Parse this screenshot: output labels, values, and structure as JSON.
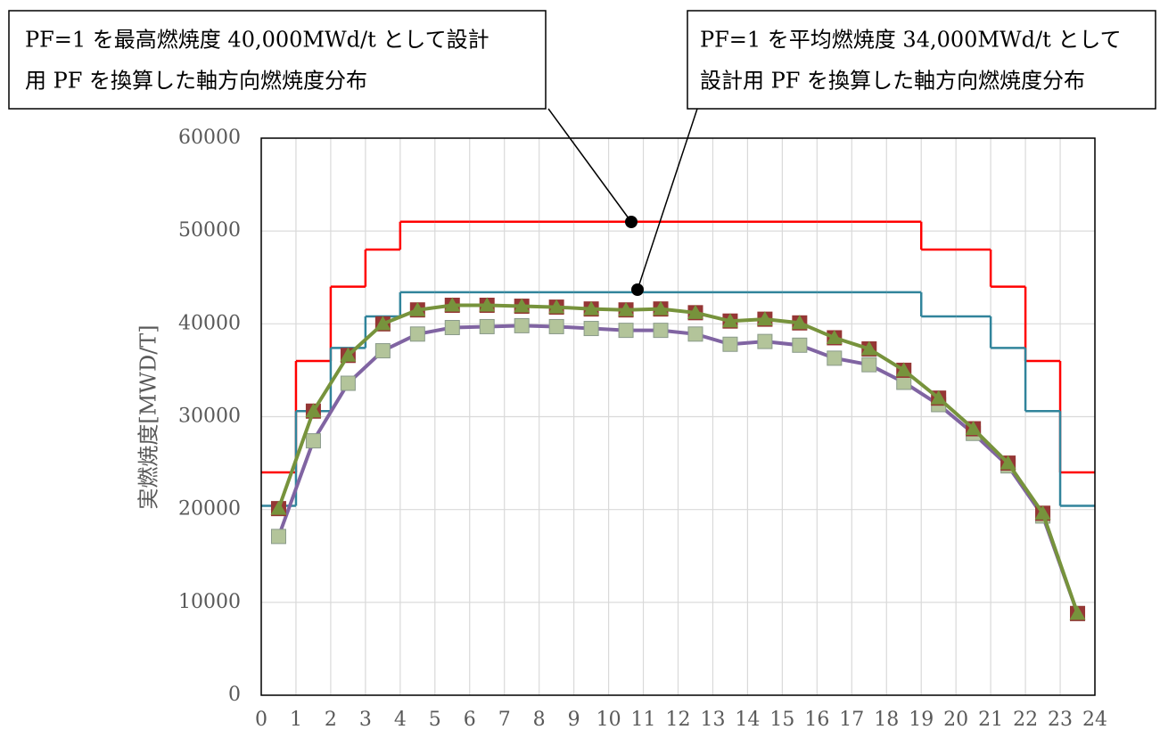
{
  "chart_data": {
    "type": "line",
    "ylabel": "実燃焼度[MWD/T]",
    "x": [
      0.5,
      1.5,
      2.5,
      3.5,
      4.5,
      5.5,
      6.5,
      7.5,
      8.5,
      9.5,
      10.5,
      11.5,
      12.5,
      13.5,
      14.5,
      15.5,
      16.5,
      17.5,
      18.5,
      19.5,
      20.5,
      21.5,
      22.5,
      23.5
    ],
    "xlim": [
      0,
      24
    ],
    "xticks": [
      0,
      1,
      2,
      3,
      4,
      5,
      6,
      7,
      8,
      9,
      10,
      11,
      12,
      13,
      14,
      15,
      16,
      17,
      18,
      19,
      20,
      21,
      22,
      23,
      24
    ],
    "ylim": [
      0,
      60000
    ],
    "yticks": [
      0,
      10000,
      20000,
      30000,
      40000,
      50000,
      60000
    ],
    "grid": true,
    "series": [
      {
        "color": "#ff0000",
        "drawstyle": "steps-mid",
        "marker": "none",
        "values": [
          24000,
          36000,
          44000,
          48000,
          51000,
          51000,
          51000,
          51000,
          51000,
          51000,
          51000,
          51000,
          51000,
          51000,
          51000,
          51000,
          51000,
          51000,
          51000,
          48000,
          48000,
          44000,
          36000,
          24000
        ]
      },
      {
        "color": "#31849b",
        "drawstyle": "steps-mid",
        "marker": "none",
        "values": [
          20400,
          30600,
          37400,
          40800,
          43400,
          43400,
          43400,
          43400,
          43400,
          43400,
          43400,
          43400,
          43400,
          43400,
          43400,
          43400,
          43400,
          43400,
          43400,
          40800,
          40800,
          37400,
          30600,
          20400
        ]
      },
      {
        "color": "#8064a2",
        "drawstyle": "line",
        "marker": "square",
        "marker_color": "#b3c49a",
        "values": [
          17100,
          27400,
          33600,
          37100,
          38900,
          39600,
          39700,
          39800,
          39700,
          39500,
          39300,
          39300,
          38900,
          37800,
          38100,
          37700,
          36300,
          35600,
          33700,
          31300,
          28200,
          24700,
          19300,
          8800
        ]
      },
      {
        "color": "#953735",
        "drawstyle": "none",
        "marker": "square",
        "marker_color": "#953735",
        "values": [
          20100,
          30600,
          36600,
          40000,
          41500,
          42000,
          42000,
          41900,
          41800,
          41600,
          41500,
          41600,
          41200,
          40300,
          40500,
          40100,
          38500,
          37300,
          35000,
          32000,
          28700,
          25000,
          19600,
          8800
        ]
      },
      {
        "color": "#77933c",
        "drawstyle": "line",
        "marker": "triangle",
        "marker_color": "#77933c",
        "values": [
          20100,
          30600,
          36600,
          40000,
          41500,
          42000,
          42000,
          41900,
          41800,
          41600,
          41500,
          41600,
          41200,
          40300,
          40500,
          40100,
          38500,
          37300,
          35000,
          32000,
          28700,
          25000,
          19600,
          8800
        ]
      }
    ],
    "annotations": [
      {
        "lines": [
          "PF=1 を最高燃焼度 40,000MWd/t として設計",
          "用 PF を換算した軸方向燃焼度分布"
        ]
      },
      {
        "lines": [
          "PF=1 を平均燃焼度 34,000MWd/t として",
          "設計用 PF を換算した軸方向燃焼度分布"
        ]
      }
    ]
  }
}
